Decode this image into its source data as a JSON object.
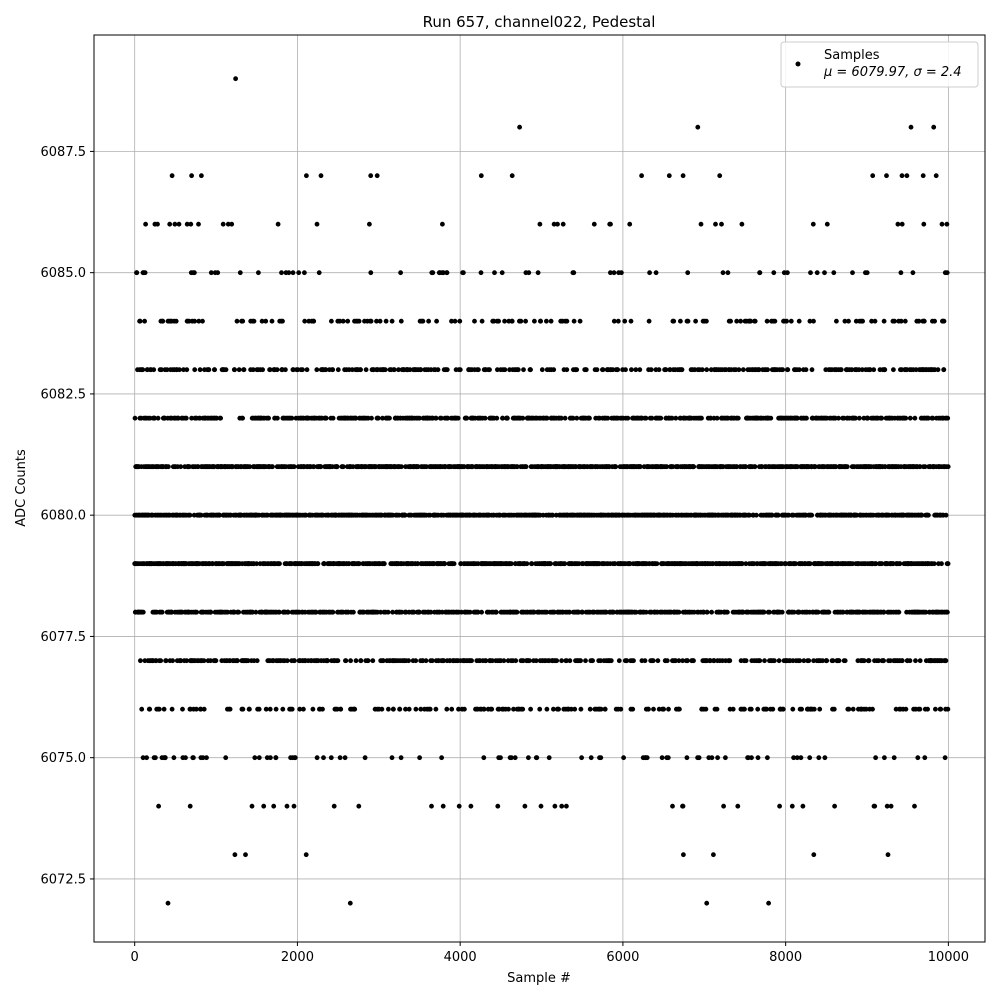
{
  "chart_data": {
    "type": "scatter",
    "title": "Run 657, channel022, Pedestal",
    "xlabel": "Sample #",
    "ylabel": "ADC Counts",
    "xlim": [
      -500,
      10450
    ],
    "ylim": [
      6071.2,
      6089.9
    ],
    "xticks": [
      0,
      2000,
      4000,
      6000,
      8000,
      10000
    ],
    "xtick_labels": [
      "0",
      "2000",
      "4000",
      "6000",
      "8000",
      "10000"
    ],
    "yticks": [
      6072.5,
      6075.0,
      6077.5,
      6080.0,
      6082.5,
      6085.0,
      6087.5
    ],
    "ytick_labels": [
      "6072.5",
      "6075.0",
      "6077.5",
      "6080.0",
      "6082.5",
      "6085.0",
      "6087.5"
    ],
    "grid": true,
    "legend_position": "top-right",
    "marker_color": "#000000",
    "series": [
      {
        "name": "Samples",
        "legend_label_line1": "Samples",
        "legend_label_line2": "μ = 6079.97, σ = 2.4",
        "x_range": [
          0,
          9999
        ],
        "sample_count": 10000,
        "mean": 6079.97,
        "sigma": 2.4,
        "discrete_levels": [
          6072,
          6073,
          6074,
          6075,
          6076,
          6077,
          6078,
          6079,
          6080,
          6081,
          6082,
          6083,
          6084,
          6085,
          6086,
          6087,
          6088,
          6089
        ],
        "outlier_points": [
          {
            "x": 1240,
            "y": 6089
          },
          {
            "x": 4730,
            "y": 6088
          },
          {
            "x": 6920,
            "y": 6088
          },
          {
            "x": 9540,
            "y": 6088
          },
          {
            "x": 9820,
            "y": 6088
          },
          {
            "x": 410,
            "y": 6072
          },
          {
            "x": 2650,
            "y": 6072
          },
          {
            "x": 7030,
            "y": 6072
          },
          {
            "x": 7790,
            "y": 6072
          },
          {
            "x": 460,
            "y": 6087
          },
          {
            "x": 700,
            "y": 6087
          },
          {
            "x": 820,
            "y": 6087
          },
          {
            "x": 2110,
            "y": 6087
          },
          {
            "x": 2290,
            "y": 6087
          },
          {
            "x": 2900,
            "y": 6087
          },
          {
            "x": 2980,
            "y": 6087
          },
          {
            "x": 4260,
            "y": 6087
          },
          {
            "x": 4640,
            "y": 6087
          },
          {
            "x": 6230,
            "y": 6087
          },
          {
            "x": 6570,
            "y": 6087
          },
          {
            "x": 6740,
            "y": 6087
          },
          {
            "x": 7190,
            "y": 6087
          },
          {
            "x": 9070,
            "y": 6087
          },
          {
            "x": 9240,
            "y": 6087
          },
          {
            "x": 9430,
            "y": 6087
          },
          {
            "x": 9490,
            "y": 6087
          },
          {
            "x": 9690,
            "y": 6087
          },
          {
            "x": 9850,
            "y": 6087
          }
        ]
      }
    ]
  }
}
